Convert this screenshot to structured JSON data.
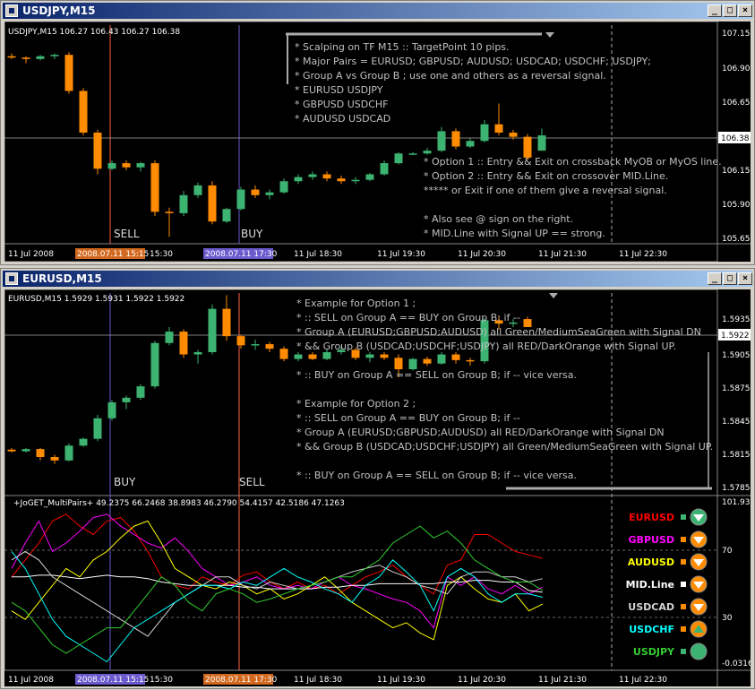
{
  "windows": [
    {
      "title": "USDJPY,M15",
      "controls": [
        "minimize",
        "maximize",
        "close"
      ]
    },
    {
      "title": "EURUSD,M15",
      "controls": [
        "minimize",
        "maximize",
        "close"
      ]
    }
  ],
  "top_chart": {
    "header": "USDJPY,M15  106.27 106.43 106.27 106.38",
    "yticks": [
      "107.15",
      "106.90",
      "106.65",
      "106.15",
      "105.90",
      "105.65"
    ],
    "price_tag": "106.38",
    "markers": [
      {
        "label": "SELL"
      },
      {
        "label": "BUY"
      }
    ],
    "xticks": [
      "11 Jul 2008",
      "2008.07.11 15:15",
      "15:30",
      "2008.07.11 17:30",
      "11 Jul 18:30",
      "11 Jul 19:30",
      "11 Jul 20:30",
      "11 Jul 21:30",
      "11 Jul 22:30"
    ],
    "notes": [
      "* Scalping on TF M15 :: TargetPoint 10 pips.",
      "* Major Pairs = EURUSD; GBPUSD; AUDUSD; USDCAD; USDCHF; USDJPY;",
      "* Group A    vs    Group B ; use one and others as a reversal signal.",
      "* EURUSD          USDJPY",
      "* GBPUSD          USDCHF",
      "* AUDUSD          USDCAD",
      "* Option 1 :: Entry && Exit on crossback MyOB or MyOS line.",
      "* Option 2 :: Entry && Exit on crossover MID.Line.",
      "***** or Exit if one of them give a reversal signal.",
      "* Also see @ sign on the right.",
      "* MID.Line with Signal UP == strong."
    ]
  },
  "bottom_chart": {
    "header": "EURUSD,M15  1.5929 1.5931 1.5922 1.5922",
    "yticks": [
      "1.5935",
      "1.5905",
      "1.5875",
      "1.5845",
      "1.5815",
      "1.5785"
    ],
    "price_tag": "1.5922",
    "markers": [
      {
        "label": "BUY"
      },
      {
        "label": "SELL"
      }
    ],
    "notes": [
      "* Example for Option 1 ;",
      "* :: SELL on Group A == BUY on Group B; if --",
      "* Group A (EURUSD;GBPUSD;AUDUSD) all Green/MediumSeaGreen with Signal DN",
      "* && Group B (USDCAD;USDCHF;USDJPY) all RED/DarkOrange with Signal UP.",
      "* :: BUY on Group A == SELL on Group B; if -- vice versa.",
      "* Example for Option 2 ;",
      "* :: SELL on Group A == BUY on Group B; if --",
      "* Group A (EURUSD;GBPUSD;AUDUSD) all RED/DarkOrange with Signal DN",
      "* && Group B (USDCAD;USDCHF;USDJPY) all Green/MediumSeaGreen with Signal UP.",
      "* :: BUY on Group A == SELL on Group B; if -- vice versa."
    ]
  },
  "indicator": {
    "header": "+JoGET_MultiPairs+  49.2375 66.2468 38.8983 46.2790 54.4157 42.5186 47.1263",
    "yticks": [
      "101.9335",
      "70",
      "30",
      "-0.0316"
    ],
    "xticks": [
      "11 Jul 2008",
      "2008.07.11 15:15",
      "15:30",
      "2008.07.11 17:30",
      "11 Jul 18:30",
      "11 Jul 19:30",
      "11 Jul 20:30",
      "11 Jul 21:30",
      "11 Jul 22:30"
    ],
    "legend": [
      {
        "name": "EURUSD",
        "color": "#ff0000",
        "box": "#3cb371",
        "signal": "down",
        "fill": "#3cb371"
      },
      {
        "name": "GBPUSD",
        "color": "#ff00ff",
        "box": "#ff8c00",
        "signal": "down",
        "fill": "#ff8c00"
      },
      {
        "name": "AUDUSD",
        "color": "#ffff00",
        "box": "#ff8c00",
        "signal": "down",
        "fill": "#ff8c00"
      },
      {
        "name": "MID.Line",
        "color": "#ffffff",
        "box": "#ffffff",
        "signal": "down",
        "fill": "#ff8c00"
      },
      {
        "name": "USDCAD",
        "color": "#d3d3d3",
        "box": "#ff8c00",
        "signal": "down",
        "fill": "#ff8c00"
      },
      {
        "name": "USDCHF",
        "color": "#00ffff",
        "box": "#ff8c00",
        "signal": "up",
        "fill": "#ff8c00"
      },
      {
        "name": "USDJPY",
        "color": "#32cd32",
        "box": "#3cb371",
        "signal": "none",
        "fill": "#3cb371"
      }
    ]
  },
  "chart_data": [
    {
      "type": "candlestick",
      "title": "USDJPY,M15",
      "ylim": [
        105.6,
        107.2
      ],
      "colors": {
        "up": "#3cb371",
        "down": "#ff8c00"
      },
      "candles": [
        [
          106.95,
          106.97,
          106.93,
          106.94
        ],
        [
          106.94,
          106.95,
          106.9,
          106.93
        ],
        [
          106.93,
          106.96,
          106.92,
          106.95
        ],
        [
          106.95,
          106.97,
          106.93,
          106.96
        ],
        [
          106.96,
          106.98,
          106.68,
          106.7
        ],
        [
          106.7,
          106.72,
          106.38,
          106.4
        ],
        [
          106.4,
          106.42,
          106.1,
          106.14
        ],
        [
          106.14,
          106.2,
          106.13,
          106.18
        ],
        [
          106.18,
          106.2,
          106.13,
          106.15
        ],
        [
          106.15,
          106.19,
          106.12,
          106.18
        ],
        [
          106.18,
          106.2,
          105.8,
          105.83
        ],
        [
          105.83,
          105.86,
          105.65,
          105.82
        ],
        [
          105.82,
          105.98,
          105.8,
          105.95
        ],
        [
          105.95,
          106.04,
          105.93,
          106.02
        ],
        [
          106.02,
          106.05,
          105.74,
          105.76
        ],
        [
          105.76,
          105.86,
          105.75,
          105.85
        ],
        [
          105.85,
          106.01,
          105.84,
          105.99
        ],
        [
          105.99,
          106.02,
          105.93,
          105.95
        ],
        [
          105.95,
          105.99,
          105.92,
          105.97
        ],
        [
          105.97,
          106.07,
          105.96,
          106.05
        ],
        [
          106.05,
          106.1,
          106.03,
          106.08
        ],
        [
          106.08,
          106.12,
          106.06,
          106.1
        ],
        [
          106.1,
          106.12,
          106.05,
          106.07
        ],
        [
          106.07,
          106.09,
          106.03,
          106.05
        ],
        [
          106.05,
          106.08,
          106.03,
          106.06
        ],
        [
          106.06,
          106.11,
          106.05,
          106.1
        ],
        [
          106.1,
          106.2,
          106.09,
          106.18
        ],
        [
          106.18,
          106.26,
          106.17,
          106.25
        ],
        [
          106.25,
          106.26,
          106.24,
          106.25
        ],
        [
          106.25,
          106.29,
          106.24,
          106.27
        ],
        [
          106.27,
          106.44,
          106.26,
          106.41
        ],
        [
          106.41,
          106.43,
          106.28,
          106.3
        ],
        [
          106.3,
          106.36,
          106.29,
          106.34
        ],
        [
          106.34,
          106.49,
          106.33,
          106.46
        ],
        [
          106.46,
          106.61,
          106.38,
          106.4
        ],
        [
          106.4,
          106.42,
          106.35,
          106.37
        ],
        [
          106.37,
          106.39,
          106.2,
          106.22
        ],
        [
          106.27,
          106.43,
          106.27,
          106.38
        ]
      ]
    },
    {
      "type": "candlestick",
      "title": "EURUSD,M15",
      "ylim": [
        1.5775,
        1.5955
      ],
      "colors": {
        "up": "#3cb371",
        "down": "#ff8c00"
      },
      "candles": [
        [
          1.58145,
          1.5816,
          1.5812,
          1.5813
        ],
        [
          1.5813,
          1.5816,
          1.5812,
          1.5815
        ],
        [
          1.5815,
          1.5816,
          1.5805,
          1.5808
        ],
        [
          1.5808,
          1.581,
          1.5802,
          1.5805
        ],
        [
          1.5805,
          1.582,
          1.5804,
          1.5818
        ],
        [
          1.5818,
          1.5825,
          1.5817,
          1.5824
        ],
        [
          1.5824,
          1.5845,
          1.5822,
          1.5842
        ],
        [
          1.5842,
          1.5858,
          1.584,
          1.5856
        ],
        [
          1.5856,
          1.5862,
          1.585,
          1.586
        ],
        [
          1.586,
          1.5872,
          1.5858,
          1.587
        ],
        [
          1.587,
          1.591,
          1.5868,
          1.5908
        ],
        [
          1.5908,
          1.5922,
          1.5906,
          1.5918
        ],
        [
          1.5918,
          1.592,
          1.5895,
          1.5898
        ],
        [
          1.5898,
          1.5902,
          1.589,
          1.59
        ],
        [
          1.59,
          1.5942,
          1.5898,
          1.5938
        ],
        [
          1.5938,
          1.595,
          1.591,
          1.5914
        ],
        [
          1.5914,
          1.5915,
          1.5903,
          1.5906
        ],
        [
          1.5906,
          1.5911,
          1.5902,
          1.5907
        ],
        [
          1.5907,
          1.5909,
          1.59,
          1.5903
        ],
        [
          1.5903,
          1.5905,
          1.5892,
          1.5894
        ],
        [
          1.5894,
          1.59,
          1.5892,
          1.5898
        ],
        [
          1.5898,
          1.59,
          1.5893,
          1.5894
        ],
        [
          1.5894,
          1.5903,
          1.5893,
          1.59
        ],
        [
          1.59,
          1.5905,
          1.5898,
          1.5902
        ],
        [
          1.5902,
          1.5904,
          1.5893,
          1.5895
        ],
        [
          1.5895,
          1.59,
          1.5891,
          1.5898
        ],
        [
          1.5898,
          1.59,
          1.5893,
          1.5895
        ],
        [
          1.5895,
          1.5898,
          1.5878,
          1.5885
        ],
        [
          1.5885,
          1.5895,
          1.5884,
          1.5894
        ],
        [
          1.5894,
          1.5896,
          1.5888,
          1.589
        ],
        [
          1.589,
          1.59,
          1.5889,
          1.5898
        ],
        [
          1.5898,
          1.59,
          1.589,
          1.5893
        ],
        [
          1.5893,
          1.5895,
          1.5888,
          1.5892
        ],
        [
          1.5892,
          1.593,
          1.589,
          1.5928
        ],
        [
          1.5928,
          1.5932,
          1.592,
          1.5925
        ],
        [
          1.5925,
          1.5929,
          1.5922,
          1.5926
        ],
        [
          1.5929,
          1.5931,
          1.5922,
          1.5922
        ]
      ]
    },
    {
      "type": "line",
      "title": "+JoGET_MultiPairs+",
      "ylim": [
        -0.0316,
        101.9335
      ],
      "levels": [
        70,
        30
      ],
      "series": [
        {
          "name": "EURUSD",
          "color": "#ff0000",
          "values": [
            55,
            65,
            75,
            88,
            92,
            85,
            80,
            88,
            90,
            82,
            70,
            55,
            50,
            48,
            55,
            52,
            50,
            56,
            58,
            52,
            48,
            52,
            48,
            50,
            45,
            50,
            55,
            58,
            62,
            55,
            50,
            45,
            62,
            65,
            80,
            80,
            75,
            70,
            68,
            66
          ]
        },
        {
          "name": "GBPUSD",
          "color": "#ff00ff",
          "values": [
            60,
            75,
            88,
            70,
            75,
            82,
            90,
            92,
            85,
            80,
            75,
            72,
            78,
            70,
            60,
            55,
            50,
            52,
            55,
            50,
            48,
            50,
            48,
            52,
            55,
            50,
            48,
            45,
            42,
            40,
            35,
            25,
            55,
            50,
            55,
            48,
            45,
            50,
            45,
            49
          ]
        },
        {
          "name": "AUDUSD",
          "color": "#ffff00",
          "values": [
            35,
            30,
            40,
            50,
            60,
            55,
            65,
            70,
            78,
            85,
            88,
            75,
            60,
            55,
            50,
            48,
            52,
            50,
            45,
            48,
            42,
            45,
            50,
            55,
            48,
            40,
            35,
            30,
            25,
            28,
            22,
            18,
            50,
            55,
            48,
            42,
            40,
            45,
            35,
            39
          ]
        },
        {
          "name": "MID.Line",
          "color": "#ffffff",
          "values": [
            55,
            55,
            56,
            56,
            55,
            54,
            55,
            56,
            55,
            55,
            54,
            52,
            51,
            50,
            50,
            50,
            50,
            49,
            49,
            48,
            48,
            48,
            48,
            49,
            49,
            50,
            50,
            51,
            51,
            51,
            51,
            51,
            52,
            52,
            53,
            53,
            52,
            52,
            47,
            46
          ]
        },
        {
          "name": "USDCAD",
          "color": "#d3d3d3",
          "values": [
            65,
            70,
            65,
            55,
            50,
            45,
            40,
            35,
            30,
            25,
            20,
            30,
            40,
            45,
            50,
            55,
            55,
            50,
            48,
            52,
            50,
            48,
            50,
            52,
            55,
            58,
            60,
            62,
            58,
            55,
            50,
            48,
            45,
            55,
            58,
            58,
            55,
            55,
            52,
            54
          ]
        },
        {
          "name": "USDCHF",
          "color": "#00ffff",
          "values": [
            70,
            60,
            45,
            30,
            20,
            15,
            10,
            5,
            15,
            25,
            30,
            35,
            40,
            45,
            50,
            50,
            48,
            52,
            50,
            55,
            60,
            55,
            52,
            48,
            45,
            40,
            50,
            55,
            65,
            58,
            50,
            35,
            55,
            60,
            55,
            45,
            40,
            45,
            45,
            43
          ]
        },
        {
          "name": "USDJPY",
          "color": "#32cd32",
          "values": [
            40,
            35,
            25,
            15,
            10,
            15,
            20,
            25,
            25,
            35,
            45,
            55,
            50,
            40,
            35,
            45,
            48,
            45,
            40,
            42,
            45,
            48,
            50,
            52,
            55,
            55,
            60,
            65,
            75,
            80,
            85,
            78,
            82,
            75,
            65,
            60,
            55,
            52,
            52,
            47
          ]
        }
      ]
    }
  ]
}
